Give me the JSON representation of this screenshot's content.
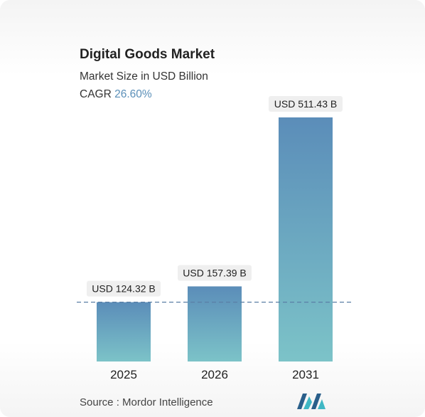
{
  "header": {
    "title": "Digital Goods Market",
    "subtitle": "Market Size in USD Billion",
    "cagr_label": "CAGR",
    "cagr_value": "26.60%"
  },
  "footer": {
    "source_label": "Source :",
    "source_value": "Mordor Intelligence"
  },
  "colors": {
    "bar_top": "#5b8db9",
    "bar_bottom": "#7cc3c8",
    "baseline_dash": "#5a7fa6",
    "label_bg": "#efefef",
    "cagr_accent": "#5a8fb8"
  },
  "chart_data": {
    "type": "bar",
    "title": "Digital Goods Market",
    "categories": [
      "2025",
      "2026",
      "2031"
    ],
    "values": [
      124.32,
      157.39,
      511.43
    ],
    "data_labels": [
      "USD 124.32 B",
      "USD 157.39 B",
      "USD 511.43 B"
    ],
    "ylim": [
      0,
      511.43
    ],
    "grid": false,
    "reference_line": {
      "value": 124.32,
      "style": "dashed"
    }
  }
}
